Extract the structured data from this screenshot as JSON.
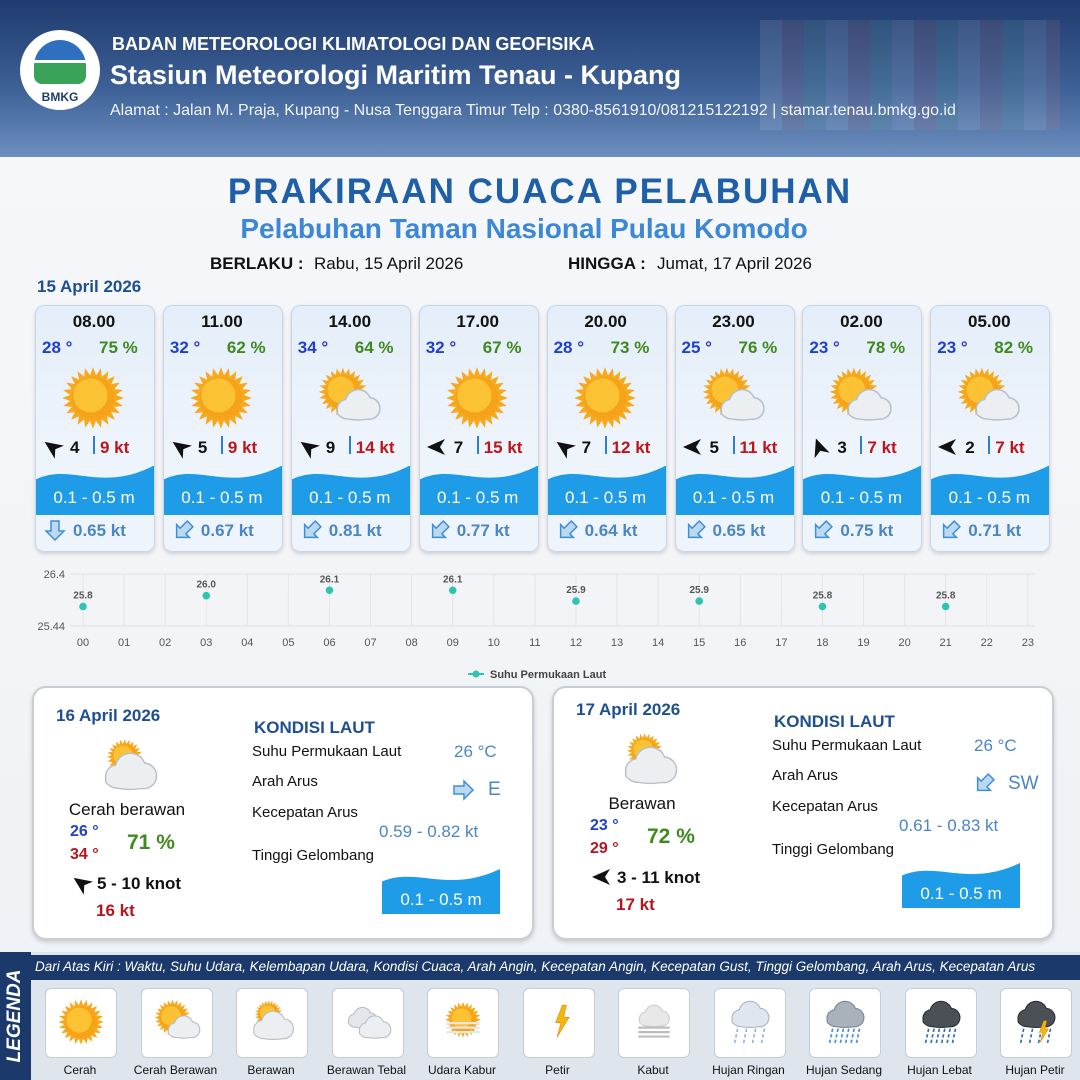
{
  "header": {
    "logo": "BMKG",
    "org": "BADAN METEOROLOGI KLIMATOLOGI DAN GEOFISIKA",
    "station": "Stasiun Meteorologi Maritim Tenau - Kupang",
    "address": "Alamat : Jalan M. Praja, Kupang - Nusa Tenggara Timur Telp : 0380-8561910/081215122192  | stamar.tenau.bmkg.go.id"
  },
  "title": "PRAKIRAAN CUACA PELABUHAN",
  "subtitle": "Pelabuhan Taman Nasional Pulau Komodo",
  "validity": {
    "from_label": "BERLAKU :",
    "from": "Rabu, 15 April 2026",
    "to_label": "HINGGA :",
    "to": "Jumat, 17 April 2026"
  },
  "day1": "15 April 2026",
  "hourly": [
    {
      "time": "08.00",
      "temp": "28 °",
      "humidity": "75 %",
      "wind": "4",
      "gust": "9 kt",
      "wave": "0.1 - 0.5 m",
      "current": "0.65 kt"
    },
    {
      "time": "11.00",
      "temp": "32 °",
      "humidity": "62 %",
      "wind": "5",
      "gust": "9 kt",
      "wave": "0.1 - 0.5 m",
      "current": "0.67 kt"
    },
    {
      "time": "14.00",
      "temp": "34 °",
      "humidity": "64 %",
      "wind": "9",
      "gust": "14 kt",
      "wave": "0.1 - 0.5 m",
      "current": "0.81 kt"
    },
    {
      "time": "17.00",
      "temp": "32 °",
      "humidity": "67 %",
      "wind": "7",
      "gust": "15 kt",
      "wave": "0.1 - 0.5 m",
      "current": "0.77 kt"
    },
    {
      "time": "20.00",
      "temp": "28 °",
      "humidity": "73 %",
      "wind": "7",
      "gust": "12 kt",
      "wave": "0.1 - 0.5 m",
      "current": "0.64 kt"
    },
    {
      "time": "23.00",
      "temp": "25 °",
      "humidity": "76 %",
      "wind": "5",
      "gust": "11 kt",
      "wave": "0.1 - 0.5 m",
      "current": "0.65 kt"
    },
    {
      "time": "02.00",
      "temp": "23 °",
      "humidity": "78 %",
      "wind": "3",
      "gust": "7 kt",
      "wave": "0.1 - 0.5 m",
      "current": "0.75 kt"
    },
    {
      "time": "05.00",
      "temp": "23 °",
      "humidity": "82 %",
      "wind": "2",
      "gust": "7 kt",
      "wave": "0.1 - 0.5 m",
      "current": "0.71 kt"
    }
  ],
  "chart_data": {
    "type": "scatter",
    "categories": [
      "00",
      "01",
      "02",
      "03",
      "04",
      "05",
      "06",
      "07",
      "08",
      "09",
      "10",
      "11",
      "12",
      "13",
      "14",
      "15",
      "16",
      "17",
      "18",
      "19",
      "20",
      "21",
      "22",
      "23"
    ],
    "series": [
      {
        "name": "Suhu Permukaan Laut",
        "color": "#2ec4b0",
        "values": [
          25.8,
          null,
          null,
          26.0,
          null,
          null,
          26.1,
          null,
          null,
          26.1,
          null,
          null,
          25.9,
          null,
          null,
          25.9,
          null,
          null,
          25.8,
          null,
          null,
          25.8,
          null,
          null
        ],
        "value_labels": [
          "25.8",
          null,
          null,
          "26.0",
          null,
          null,
          "26.1",
          null,
          null,
          "26.1",
          null,
          null,
          "25.9",
          null,
          null,
          "25.9",
          null,
          null,
          "25.8",
          null,
          null,
          "25.8",
          null,
          null
        ]
      }
    ],
    "ylim": [
      25.44,
      26.4
    ],
    "yticks": [
      25.44,
      26.4
    ],
    "grid": true,
    "legend": "bottom"
  },
  "daily": [
    {
      "date": "16 April 2026",
      "condition": "Cerah berawan",
      "temp_min": "26 °",
      "temp_max": "34 °",
      "humidity": "71 %",
      "wind": "5  - 10 knot",
      "gust": "16 kt",
      "sea": {
        "heading": "KONDISI LAUT",
        "sst_label": "Suhu Permukaan Laut",
        "sst": "26 °C",
        "dir_label": "Arah Arus",
        "dir": "E",
        "speed_label": "Kecepatan Arus",
        "speed": "0.59 - 0.82 kt",
        "wave_label": "Tinggi Gelombang",
        "wave": "0.1 - 0.5 m"
      }
    },
    {
      "date": "17 April 2026",
      "condition": "Berawan",
      "temp_min": "23 °",
      "temp_max": "29 °",
      "humidity": "72 %",
      "wind": "3 - 11 knot",
      "gust": "17 kt",
      "sea": {
        "heading": "KONDISI LAUT",
        "sst_label": "Suhu Permukaan Laut",
        "sst": "26 °C",
        "dir_label": "Arah Arus",
        "dir": "SW",
        "speed_label": "Kecepatan Arus",
        "speed": "0.61 - 0.83 kt",
        "wave_label": "Tinggi Gelombang",
        "wave": "0.1 - 0.5 m"
      }
    }
  ],
  "legend": {
    "title": "LEGENDA",
    "description": "Dari Atas Kiri : Waktu, Suhu Udara, Kelembapan Udara, Kondisi Cuaca, Arah Angin, Kecepatan Angin, Kecepatan Gust, Tinggi Gelombang, Arah Arus, Kecepatan Arus",
    "items": [
      "Cerah",
      "Cerah Berawan",
      "Berawan",
      "Berawan Tebal",
      "Udara Kabur",
      "Petir",
      "Kabut",
      "Hujan Ringan",
      "Hujan Sedang",
      "Hujan Lebat",
      "Hujan Petir"
    ]
  }
}
